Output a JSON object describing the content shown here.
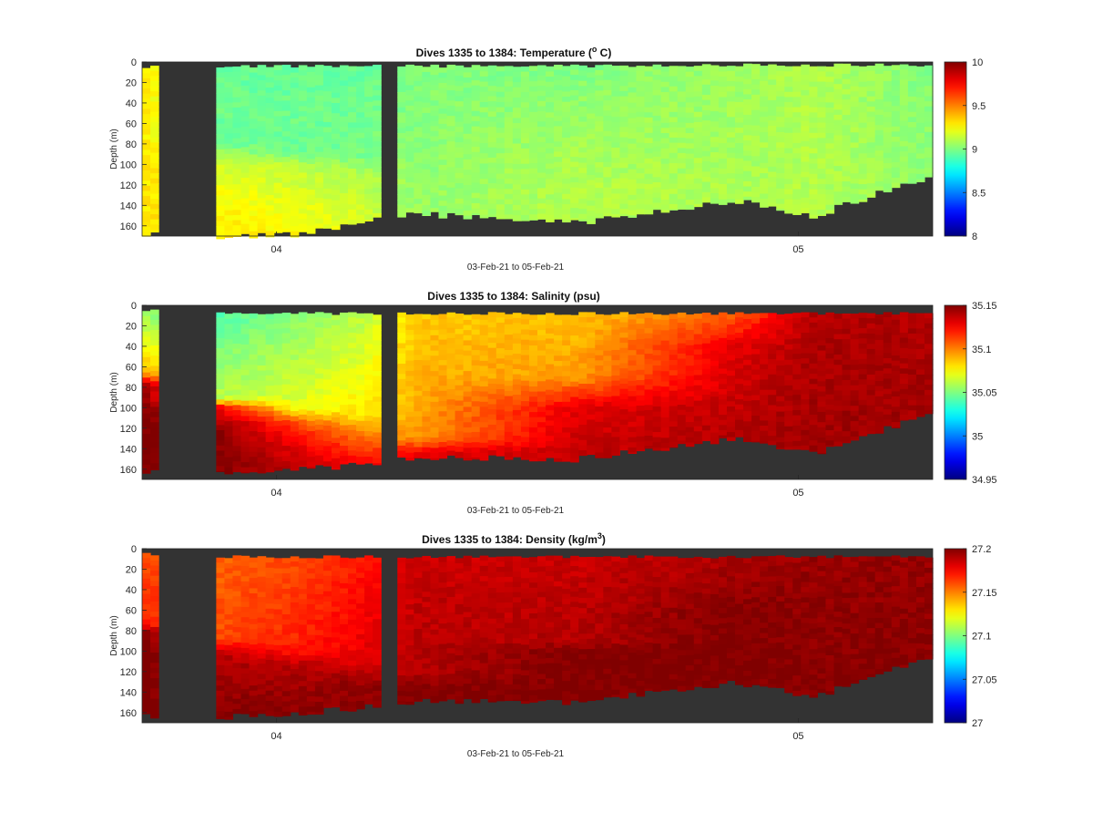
{
  "charts": [
    {
      "key": "temperature",
      "title_main": "Dives 1335 to 1384: Temperature (",
      "title_sup": "o",
      "title_tail": " C)",
      "ylabel": "Depth (m)",
      "xlabel": "03-Feb-21 to 05-Feb-21",
      "yticks": [
        "0",
        "20",
        "40",
        "60",
        "80",
        "100",
        "120",
        "140",
        "160"
      ],
      "xticks": [
        "04",
        "05"
      ],
      "colorbar_ticks": [
        "10",
        "9.5",
        "9",
        "8.5",
        "8"
      ]
    },
    {
      "key": "salinity",
      "title_main": "Dives 1335 to 1384: Salinity (psu)",
      "title_sup": "",
      "title_tail": "",
      "ylabel": "Depth (m)",
      "xlabel": "03-Feb-21 to 05-Feb-21",
      "yticks": [
        "0",
        "20",
        "40",
        "60",
        "80",
        "100",
        "120",
        "140",
        "160"
      ],
      "xticks": [
        "04",
        "05"
      ],
      "colorbar_ticks": [
        "35.15",
        "35.1",
        "35.05",
        "35",
        "34.95"
      ]
    },
    {
      "key": "density",
      "title_main": "Dives 1335 to 1384: Density (kg/m",
      "title_sup": "3",
      "title_tail": ")",
      "ylabel": "Depth (m)",
      "xlabel": "03-Feb-21 to 05-Feb-21",
      "yticks": [
        "0",
        "20",
        "40",
        "60",
        "80",
        "100",
        "120",
        "140",
        "160"
      ],
      "xticks": [
        "04",
        "05"
      ],
      "colorbar_ticks": [
        "27.2",
        "27.15",
        "27.1",
        "27.05",
        "27"
      ]
    }
  ],
  "chart_data": [
    {
      "type": "heatmap",
      "title": "Dives 1335 to 1384: Temperature (o C)",
      "xlabel": "03-Feb-21 to 05-Feb-21",
      "ylabel": "Depth (m)",
      "ylim": [
        170,
        0
      ],
      "xlim": [
        "2021-02-03",
        "2021-02-05"
      ],
      "colorbar_range": [
        8,
        10
      ],
      "colormap": "jet",
      "background": "#333333",
      "profiles": [
        {
          "t": 0.0,
          "top": 5,
          "bottom": 168,
          "layers": [
            [
              0,
              9.3
            ],
            [
              170,
              9.3
            ]
          ]
        },
        {
          "t": 0.09,
          "top": 4,
          "bottom": 170,
          "layers": [
            [
              0,
              8.95
            ],
            [
              80,
              8.97
            ],
            [
              95,
              9.15
            ],
            [
              130,
              9.25
            ],
            [
              170,
              9.3
            ]
          ]
        },
        {
          "t": 0.2,
          "top": 4,
          "bottom": 168,
          "layers": [
            [
              0,
              8.95
            ],
            [
              90,
              8.97
            ],
            [
              100,
              9.12
            ],
            [
              140,
              9.2
            ],
            [
              170,
              9.25
            ]
          ]
        },
        {
          "t": 0.28,
          "top": 4,
          "bottom": 156,
          "layers": [
            [
              0,
              8.95
            ],
            [
              90,
              8.98
            ],
            [
              110,
              9.1
            ],
            [
              140,
              9.15
            ],
            [
              170,
              9.2
            ]
          ]
        },
        {
          "t": 0.35,
          "top": 4,
          "bottom": 148,
          "layers": [
            [
              0,
              9.0
            ],
            [
              150,
              9.05
            ],
            [
              170,
              9.08
            ]
          ]
        },
        {
          "t": 0.55,
          "top": 4,
          "bottom": 157,
          "layers": [
            [
              0,
              9.0
            ],
            [
              60,
              9.05
            ],
            [
              120,
              9.1
            ],
            [
              170,
              9.1
            ]
          ]
        },
        {
          "t": 0.75,
          "top": 3,
          "bottom": 135,
          "layers": [
            [
              0,
              9.05
            ],
            [
              100,
              9.08
            ],
            [
              170,
              9.1
            ]
          ]
        },
        {
          "t": 0.85,
          "top": 3,
          "bottom": 150,
          "layers": [
            [
              0,
              9.1
            ],
            [
              170,
              9.1
            ]
          ]
        },
        {
          "t": 1.0,
          "top": 3,
          "bottom": 110,
          "layers": [
            [
              0,
              9.0
            ],
            [
              170,
              9.05
            ]
          ]
        }
      ],
      "gaps": [
        [
          0.02,
          0.09
        ],
        [
          0.3,
          0.32
        ]
      ]
    },
    {
      "type": "heatmap",
      "title": "Dives 1335 to 1384: Salinity (psu)",
      "xlabel": "03-Feb-21 to 05-Feb-21",
      "ylabel": "Depth (m)",
      "ylim": [
        170,
        0
      ],
      "xlim": [
        "2021-02-03",
        "2021-02-05"
      ],
      "colorbar_range": [
        34.95,
        35.15
      ],
      "colormap": "jet",
      "background": "#333333",
      "profiles": [
        {
          "t": 0.0,
          "top": 5,
          "bottom": 163,
          "layers": [
            [
              0,
              35.05
            ],
            [
              65,
              35.09
            ],
            [
              80,
              35.15
            ],
            [
              170,
              35.15
            ]
          ]
        },
        {
          "t": 0.09,
          "top": 8,
          "bottom": 165,
          "layers": [
            [
              0,
              35.04
            ],
            [
              90,
              35.06
            ],
            [
              100,
              35.13
            ],
            [
              120,
              35.15
            ],
            [
              170,
              35.15
            ]
          ]
        },
        {
          "t": 0.2,
          "top": 8,
          "bottom": 160,
          "layers": [
            [
              0,
              35.05
            ],
            [
              100,
              35.07
            ],
            [
              115,
              35.11
            ],
            [
              140,
              35.13
            ],
            [
              170,
              35.14
            ]
          ]
        },
        {
          "t": 0.28,
          "top": 8,
          "bottom": 155,
          "layers": [
            [
              0,
              35.06
            ],
            [
              110,
              35.08
            ],
            [
              125,
              35.1
            ],
            [
              150,
              35.12
            ],
            [
              170,
              35.13
            ]
          ]
        },
        {
          "t": 0.35,
          "top": 8,
          "bottom": 148,
          "layers": [
            [
              0,
              35.085
            ],
            [
              130,
              35.095
            ],
            [
              145,
              35.13
            ],
            [
              170,
              35.14
            ]
          ]
        },
        {
          "t": 0.55,
          "top": 8,
          "bottom": 150,
          "layers": [
            [
              0,
              35.085
            ],
            [
              70,
              35.095
            ],
            [
              100,
              35.13
            ],
            [
              170,
              35.14
            ]
          ]
        },
        {
          "t": 0.75,
          "top": 8,
          "bottom": 130,
          "layers": [
            [
              0,
              35.1
            ],
            [
              40,
              35.13
            ],
            [
              170,
              35.145
            ]
          ]
        },
        {
          "t": 0.85,
          "top": 8,
          "bottom": 145,
          "layers": [
            [
              0,
              35.14
            ],
            [
              170,
              35.145
            ]
          ]
        },
        {
          "t": 1.0,
          "top": 8,
          "bottom": 105,
          "layers": [
            [
              0,
              35.14
            ],
            [
              170,
              35.145
            ]
          ]
        }
      ],
      "gaps": [
        [
          0.02,
          0.09
        ],
        [
          0.3,
          0.32
        ]
      ]
    },
    {
      "type": "heatmap",
      "title": "Dives 1335 to 1384: Density (kg/m3)",
      "xlabel": "03-Feb-21 to 05-Feb-21",
      "ylabel": "Depth (m)",
      "ylim": [
        170,
        0
      ],
      "xlim": [
        "2021-02-03",
        "2021-02-05"
      ],
      "colorbar_range": [
        27.0,
        27.2
      ],
      "colormap": "jet",
      "background": "#333333",
      "profiles": [
        {
          "t": 0.0,
          "top": 5,
          "bottom": 163,
          "layers": [
            [
              0,
              27.16
            ],
            [
              75,
              27.17
            ],
            [
              80,
              27.2
            ],
            [
              170,
              27.2
            ]
          ]
        },
        {
          "t": 0.09,
          "top": 8,
          "bottom": 165,
          "layers": [
            [
              0,
              27.155
            ],
            [
              90,
              27.16
            ],
            [
              100,
              27.19
            ],
            [
              170,
              27.2
            ]
          ]
        },
        {
          "t": 0.2,
          "top": 8,
          "bottom": 160,
          "layers": [
            [
              0,
              27.16
            ],
            [
              100,
              27.17
            ],
            [
              115,
              27.19
            ],
            [
              170,
              27.2
            ]
          ]
        },
        {
          "t": 0.28,
          "top": 8,
          "bottom": 155,
          "layers": [
            [
              0,
              27.17
            ],
            [
              110,
              27.18
            ],
            [
              130,
              27.195
            ],
            [
              170,
              27.2
            ]
          ]
        },
        {
          "t": 0.35,
          "top": 8,
          "bottom": 148,
          "layers": [
            [
              0,
              27.185
            ],
            [
              120,
              27.19
            ],
            [
              140,
              27.2
            ],
            [
              170,
              27.2
            ]
          ]
        },
        {
          "t": 0.55,
          "top": 8,
          "bottom": 150,
          "layers": [
            [
              0,
              27.185
            ],
            [
              90,
              27.19
            ],
            [
              100,
              27.2
            ],
            [
              170,
              27.2
            ]
          ]
        },
        {
          "t": 0.75,
          "top": 8,
          "bottom": 130,
          "layers": [
            [
              0,
              27.19
            ],
            [
              40,
              27.195
            ],
            [
              60,
              27.2
            ],
            [
              170,
              27.2
            ]
          ]
        },
        {
          "t": 0.85,
          "top": 8,
          "bottom": 145,
          "layers": [
            [
              0,
              27.195
            ],
            [
              170,
              27.2
            ]
          ]
        },
        {
          "t": 1.0,
          "top": 8,
          "bottom": 105,
          "layers": [
            [
              0,
              27.195
            ],
            [
              170,
              27.2
            ]
          ]
        }
      ],
      "gaps": [
        [
          0.02,
          0.09
        ],
        [
          0.3,
          0.32
        ]
      ]
    }
  ]
}
